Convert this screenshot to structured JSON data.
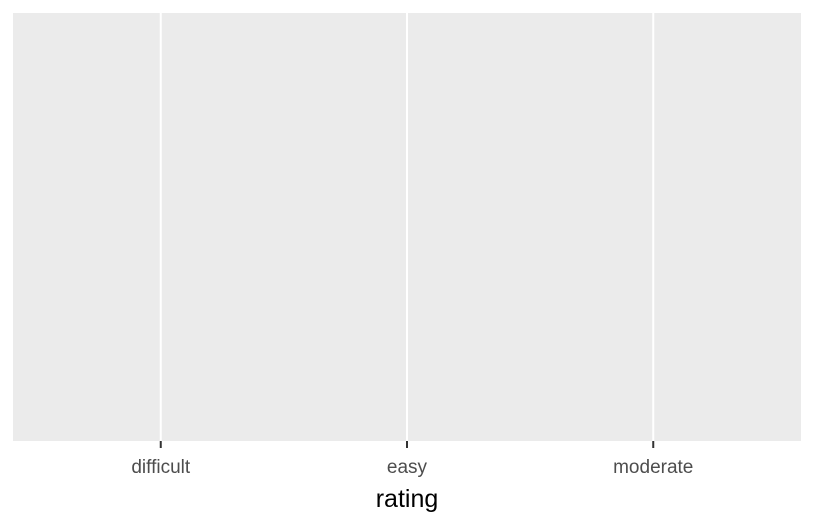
{
  "chart_data": {
    "type": "bar",
    "title": "",
    "xlabel": "rating",
    "ylabel": "",
    "categories": [
      "difficult",
      "easy",
      "moderate"
    ],
    "series": [],
    "grid": true,
    "legend": "none",
    "colors": {
      "panel_background": "#ebebeb",
      "grid_line": "#ffffff",
      "tick_label": "#4d4d4d",
      "tick_mark": "#333333",
      "axis_title": "#000000"
    }
  }
}
